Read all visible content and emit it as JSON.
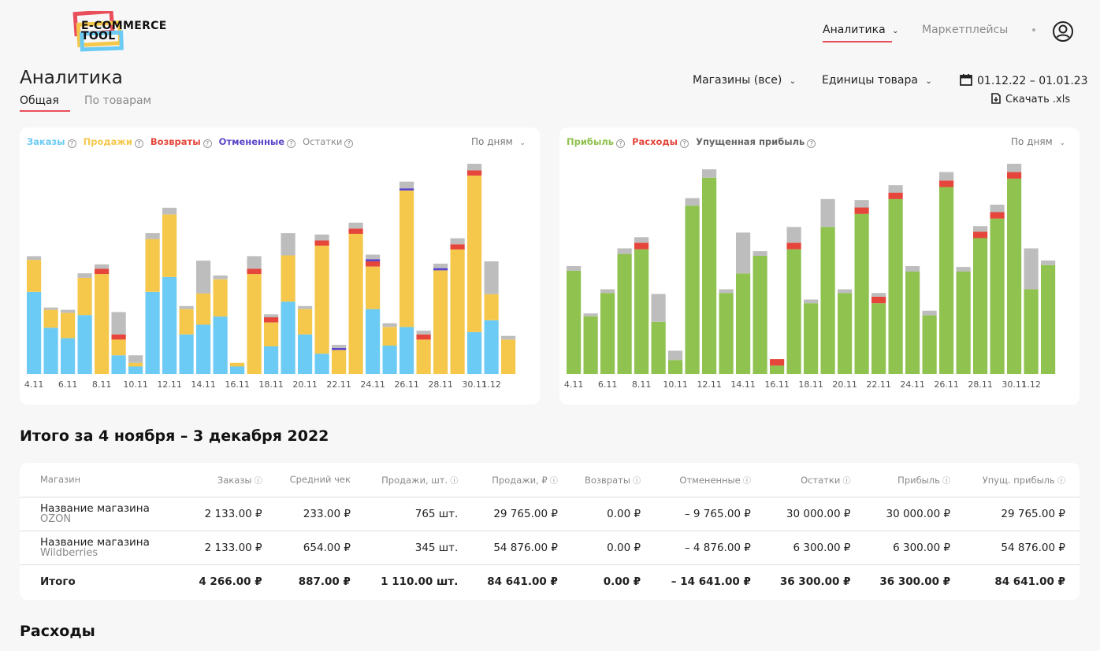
{
  "header": {
    "logo_line1": "E-COMMERCE",
    "logo_line2": "TOOL",
    "nav": {
      "analytics": "Аналитика",
      "marketplaces": "Маркетплейсы"
    }
  },
  "page": {
    "title": "Аналитика",
    "tabs": {
      "general": "Общая",
      "products": "По товарам"
    },
    "filters": {
      "shops": "Магазины (все)",
      "units": "Единицы товара",
      "date_range": "01.12.22 – 01.01.23"
    },
    "download": "Скачать .xls"
  },
  "chart1_legend": {
    "orders": "Заказы",
    "sales": "Продажи",
    "returns": "Возвраты",
    "cancelled": "Отмененные",
    "stock": "Остатки",
    "period": "По дням"
  },
  "chart2_legend": {
    "profit": "Прибыль",
    "expenses": "Расходы",
    "lost": "Упущенная прибыль",
    "period": "По дням"
  },
  "colors": {
    "orders": "#6bcbf4",
    "sales": "#f5c84c",
    "returns": "#e5453a",
    "cancelled": "#5a46c8",
    "stock": "#bdbdbd",
    "profit": "#8fc24f",
    "accent": "#e94f5b"
  },
  "chart_data": [
    {
      "type": "bar",
      "categories": [
        "4.11",
        "5.11",
        "6.11",
        "7.11",
        "8.11",
        "9.11",
        "10.11",
        "11.11",
        "12.11",
        "13.11",
        "14.11",
        "15.11",
        "16.11",
        "17.11",
        "18.11",
        "19.11",
        "20.11",
        "21.11",
        "22.11",
        "23.11",
        "24.11",
        "25.11",
        "26.11",
        "27.11",
        "28.11",
        "29.11",
        "30.11",
        "1.12",
        "2.12"
      ],
      "tick_labels": [
        "4.11",
        "6.11",
        "8.11",
        "10.11",
        "12.11",
        "14.11",
        "16.11",
        "18.11",
        "20.11",
        "22.11",
        "24.11",
        "26.11",
        "28.11",
        "30.11",
        "1.12"
      ],
      "series": [
        {
          "name": "Заказы",
          "values": [
            110,
            62,
            48,
            79,
            0,
            25,
            10,
            110,
            130,
            53,
            66,
            77,
            10,
            0,
            37,
            97,
            53,
            27,
            0,
            0,
            87,
            38,
            63,
            0,
            0,
            0,
            56,
            72,
            0
          ]
        },
        {
          "name": "Продажи",
          "values": [
            43,
            24,
            34,
            50,
            134,
            21,
            5,
            71,
            84,
            34,
            42,
            50,
            5,
            134,
            32,
            62,
            34,
            145,
            32,
            188,
            57,
            25,
            183,
            46,
            139,
            167,
            210,
            35,
            46
          ]
        },
        {
          "name": "Возвраты",
          "values": [
            0,
            0,
            0,
            0,
            7,
            7,
            0,
            0,
            0,
            0,
            0,
            0,
            0,
            7,
            7,
            0,
            0,
            7,
            0,
            7,
            7,
            0,
            0,
            7,
            0,
            7,
            7,
            0,
            0
          ]
        },
        {
          "name": "Отмененные",
          "values": [
            0,
            0,
            0,
            0,
            0,
            0,
            0,
            0,
            0,
            0,
            0,
            0,
            0,
            0,
            0,
            0,
            0,
            0,
            3,
            0,
            3,
            0,
            3,
            0,
            3,
            0,
            0,
            0,
            0
          ]
        },
        {
          "name": "Остатки",
          "values": [
            5,
            3,
            4,
            6,
            6,
            30,
            10,
            8,
            9,
            4,
            44,
            5,
            0,
            17,
            4,
            30,
            4,
            8,
            4,
            8,
            6,
            5,
            9,
            5,
            6,
            8,
            9,
            44,
            5
          ]
        }
      ]
    },
    {
      "type": "bar",
      "categories": [
        "4.11",
        "5.11",
        "6.11",
        "7.11",
        "8.11",
        "9.11",
        "10.11",
        "11.11",
        "12.11",
        "13.11",
        "14.11",
        "15.11",
        "16.11",
        "17.11",
        "18.11",
        "19.11",
        "20.11",
        "21.11",
        "22.11",
        "23.11",
        "24.11",
        "25.11",
        "26.11",
        "27.11",
        "28.11",
        "29.11",
        "30.11",
        "1.12",
        "2.12"
      ],
      "tick_labels": [
        "4.11",
        "6.11",
        "8.11",
        "10.11",
        "12.11",
        "14.11",
        "16.11",
        "18.11",
        "20.11",
        "22.11",
        "24.11",
        "26.11",
        "28.11",
        "30.11",
        "1.12"
      ],
      "series": [
        {
          "name": "Прибыль",
          "values": [
            111,
            62,
            87,
            129,
            134,
            56,
            15,
            181,
            211,
            87,
            108,
            127,
            9,
            134,
            76,
            158,
            87,
            172,
            76,
            188,
            110,
            63,
            201,
            110,
            146,
            167,
            210,
            91,
            117
          ]
        },
        {
          "name": "Расходы",
          "values": [
            0,
            0,
            0,
            0,
            7,
            0,
            0,
            0,
            0,
            0,
            0,
            0,
            7,
            7,
            0,
            0,
            0,
            7,
            7,
            7,
            0,
            0,
            7,
            0,
            7,
            7,
            7,
            0,
            0
          ]
        },
        {
          "name": "Упущенная прибыль",
          "values": [
            5,
            3,
            4,
            6,
            6,
            30,
            10,
            8,
            9,
            4,
            44,
            5,
            0,
            17,
            4,
            30,
            4,
            8,
            4,
            8,
            6,
            5,
            9,
            5,
            6,
            8,
            9,
            44,
            5
          ]
        }
      ]
    }
  ],
  "summary": {
    "title": "Итого за 4 ноября – 3 декабря 2022",
    "columns": [
      "Магазин",
      "Заказы",
      "Средний чек",
      "Продажи, шт.",
      "Продажи, ₽",
      "Возвраты",
      "Отмененные",
      "Остатки",
      "Прибыль",
      "Упущ. прибыль"
    ],
    "rows": [
      {
        "shop": "Название магазина",
        "market": "OZON",
        "cells": [
          "2 133.00 ₽",
          "233.00 ₽",
          "765 шт.",
          "29 765.00 ₽",
          "0.00 ₽",
          "– 9 765.00 ₽",
          "30 000.00 ₽",
          "30 000.00 ₽",
          "29 765.00 ₽"
        ]
      },
      {
        "shop": "Название магазина",
        "market": "Wildberries",
        "cells": [
          "2 133.00 ₽",
          "654.00 ₽",
          "345 шт.",
          "54 876.00 ₽",
          "0.00 ₽",
          "– 4 876.00 ₽",
          "6 300.00 ₽",
          "6 300.00 ₽",
          "54 876.00 ₽"
        ]
      }
    ],
    "total": {
      "label": "Итого",
      "cells": [
        "4 266.00 ₽",
        "887.00 ₽",
        "1 110.00 шт.",
        "84 641.00 ₽",
        "0.00 ₽",
        "– 14 641.00 ₽",
        "36 300.00 ₽",
        "36 300.00 ₽",
        "84 641.00 ₽"
      ]
    }
  },
  "expenses_title": "Расходы"
}
